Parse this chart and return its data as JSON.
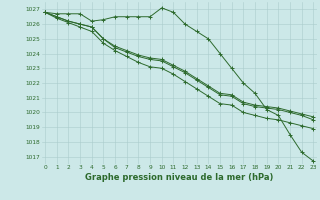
{
  "background_color": "#cce8e8",
  "grid_color": "#aacccc",
  "line_color": "#2d6a2d",
  "xlabel": "Graphe pression niveau de la mer (hPa)",
  "xlabel_fontsize": 6.0,
  "ylabel_ticks": [
    1017,
    1018,
    1019,
    1020,
    1021,
    1022,
    1023,
    1024,
    1025,
    1026,
    1027
  ],
  "xticks": [
    0,
    1,
    2,
    3,
    4,
    5,
    6,
    7,
    8,
    9,
    10,
    11,
    12,
    13,
    14,
    15,
    16,
    17,
    18,
    19,
    20,
    21,
    22,
    23
  ],
  "ylim": [
    1016.5,
    1027.5
  ],
  "xlim": [
    -0.3,
    23.3
  ],
  "tick_fontsize": 4.2,
  "series": [
    [
      1026.8,
      1026.7,
      1026.7,
      1026.7,
      1026.2,
      1026.3,
      1026.5,
      1026.5,
      1026.5,
      1026.5,
      1027.1,
      1026.8,
      1026.0,
      1025.5,
      1025.0,
      1024.0,
      1023.0,
      1022.0,
      1021.3,
      1020.2,
      1019.8,
      1018.5,
      1017.3,
      1016.7
    ],
    [
      1026.8,
      1026.5,
      1026.2,
      1026.0,
      1025.8,
      1025.0,
      1024.5,
      1024.2,
      1023.9,
      1023.7,
      1023.6,
      1023.2,
      1022.8,
      1022.3,
      1021.8,
      1021.3,
      1021.2,
      1020.7,
      1020.5,
      1020.4,
      1020.3,
      1020.1,
      1019.9,
      1019.7
    ],
    [
      1026.8,
      1026.5,
      1026.2,
      1026.0,
      1025.8,
      1025.0,
      1024.4,
      1024.1,
      1023.8,
      1023.6,
      1023.5,
      1023.1,
      1022.7,
      1022.2,
      1021.7,
      1021.2,
      1021.1,
      1020.6,
      1020.4,
      1020.3,
      1020.2,
      1020.0,
      1019.8,
      1019.5
    ],
    [
      1026.8,
      1026.4,
      1026.1,
      1025.8,
      1025.5,
      1024.7,
      1024.2,
      1023.8,
      1023.4,
      1023.1,
      1023.0,
      1022.6,
      1022.1,
      1021.6,
      1021.1,
      1020.6,
      1020.5,
      1020.0,
      1019.8,
      1019.6,
      1019.5,
      1019.3,
      1019.1,
      1018.9
    ]
  ]
}
